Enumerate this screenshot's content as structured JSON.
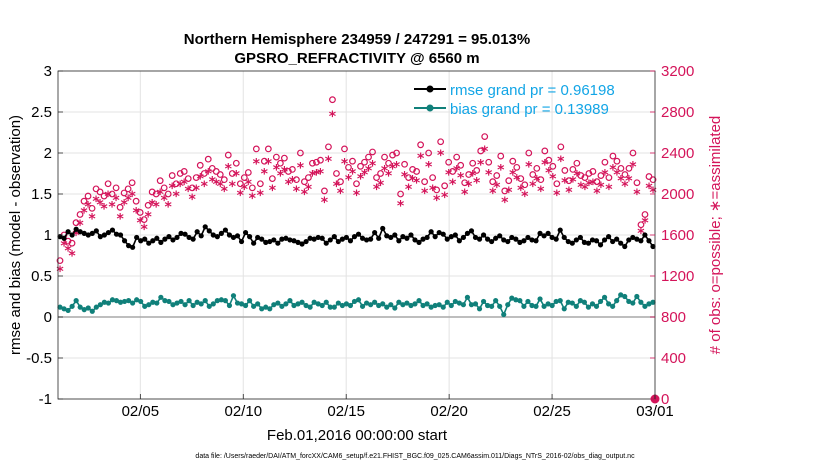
{
  "chart_data": {
    "type": "line",
    "title": "Northern Hemisphere 234959 / 247291 = 95.013%",
    "subtitle": "GPSRO_REFRACTIVITY @ 6560 m",
    "xlabel": "Feb.01,2016 00:00:00 start",
    "ylabel": "rmse and bias (model - observation)",
    "y2label": "# of obs: o=possible; ∗=assimilated",
    "footnote": "data file: /Users/raeder/DAI/ATM_forcXX/CAM6_setup/f.e21.FHIST_BGC.f09_025.CAM6assim.011/Diags_NTrS_2016-02/obs_diag_output.nc",
    "xlim": [
      1,
      30
    ],
    "ylim": [
      -1,
      3
    ],
    "y2lim": [
      0,
      3200
    ],
    "x_tick_values": [
      5,
      10,
      15,
      20,
      25,
      30
    ],
    "x_tick_labels": [
      "02/05",
      "02/10",
      "02/15",
      "02/20",
      "02/25",
      "03/01"
    ],
    "y_ticks": [
      -1,
      -0.5,
      0,
      0.5,
      1,
      1.5,
      2,
      2.5,
      3
    ],
    "y_tick_labels": [
      "-1",
      "-0.5",
      "0",
      "0.5",
      "1",
      "1.5",
      "2",
      "2.5",
      "3"
    ],
    "y2_ticks": [
      0,
      400,
      800,
      1200,
      1600,
      2000,
      2400,
      2800,
      3200
    ],
    "y2_tick_labels": [
      "0",
      "400",
      "800",
      "1200",
      "1600",
      "2000",
      "2400",
      "2800",
      "3200"
    ],
    "grid": true,
    "legend_position": "top-right",
    "series": [
      {
        "name": "rmse grand pr = 0.96198",
        "color": "#000000",
        "axis": "left",
        "values": [
          0.98,
          0.96,
          1.04,
          1.0,
          1.07,
          1.04,
          1.02,
          1.0,
          1.02,
          1.05,
          0.98,
          1.0,
          1.03,
          1.06,
          1.01,
          1.0,
          0.93,
          0.87,
          0.85,
          0.97,
          0.93,
          0.95,
          0.9,
          0.93,
          0.96,
          0.91,
          0.95,
          0.98,
          0.94,
          0.97,
          1.02,
          1.01,
          0.97,
          0.95,
          1.04,
          0.99,
          1.1,
          1.05,
          1.0,
          0.98,
          1.02,
          1.06,
          1.0,
          0.97,
          0.99,
          0.92,
          1.03,
          0.98,
          0.9,
          0.97,
          0.95,
          0.91,
          0.92,
          0.94,
          0.9,
          0.95,
          0.96,
          0.94,
          0.93,
          0.91,
          0.89,
          0.92,
          0.96,
          0.95,
          0.97,
          0.96,
          0.9,
          0.94,
          0.98,
          0.92,
          0.95,
          0.97,
          0.93,
          0.98,
          1.01,
          0.96,
          0.94,
          0.95,
          1.03,
          0.96,
          1.08,
          0.99,
          0.97,
          1.0,
          0.93,
          0.98,
          0.96,
          1.0,
          0.94,
          0.91,
          0.95,
          0.97,
          1.04,
          0.98,
          1.03,
          1.01,
          0.95,
          0.98,
          1.0,
          0.93,
          0.97,
          1.02,
          1.05,
          0.97,
          0.95,
          1.0,
          0.95,
          0.92,
          0.96,
          0.99,
          0.94,
          0.92,
          0.97,
          0.95,
          0.91,
          0.93,
          0.97,
          0.94,
          0.93,
          1.02,
          0.99,
          1.02,
          0.97,
          0.95,
          1.06,
          0.97,
          0.92,
          0.9,
          0.94,
          0.97,
          0.91,
          0.9,
          0.94,
          0.93,
          0.88,
          0.94,
          0.98,
          0.92,
          0.95,
          0.9,
          0.86,
          0.94,
          0.97,
          0.95,
          0.93,
          1.0,
          0.93,
          0.86
        ]
      },
      {
        "name": "bias grand pr = 0.13989",
        "color": "#10807a",
        "axis": "left",
        "values": [
          0.12,
          0.1,
          0.08,
          0.13,
          0.2,
          0.12,
          0.09,
          0.11,
          0.07,
          0.12,
          0.15,
          0.18,
          0.17,
          0.21,
          0.2,
          0.18,
          0.19,
          0.2,
          0.17,
          0.21,
          0.19,
          0.13,
          0.15,
          0.18,
          0.17,
          0.24,
          0.2,
          0.19,
          0.15,
          0.17,
          0.19,
          0.15,
          0.2,
          0.14,
          0.18,
          0.16,
          0.2,
          0.13,
          0.16,
          0.2,
          0.21,
          0.2,
          0.14,
          0.26,
          0.17,
          0.16,
          0.14,
          0.2,
          0.13,
          0.16,
          0.1,
          0.12,
          0.1,
          0.15,
          0.17,
          0.13,
          0.16,
          0.2,
          0.14,
          0.16,
          0.18,
          0.14,
          0.12,
          0.18,
          0.16,
          0.14,
          0.18,
          0.12,
          0.12,
          0.17,
          0.14,
          0.16,
          0.14,
          0.19,
          0.21,
          0.13,
          0.17,
          0.15,
          0.18,
          0.14,
          0.16,
          0.12,
          0.15,
          0.11,
          0.18,
          0.15,
          0.17,
          0.14,
          0.16,
          0.2,
          0.14,
          0.16,
          0.12,
          0.14,
          0.15,
          0.12,
          0.18,
          0.14,
          0.19,
          0.17,
          0.15,
          0.24,
          0.15,
          0.16,
          0.1,
          0.19,
          0.14,
          0.13,
          0.2,
          0.13,
          0.03,
          0.15,
          0.23,
          0.21,
          0.2,
          0.13,
          0.19,
          0.14,
          0.13,
          0.22,
          0.13,
          0.16,
          0.14,
          0.19,
          0.2,
          0.1,
          0.18,
          0.17,
          0.13,
          0.2,
          0.18,
          0.12,
          0.16,
          0.13,
          0.19,
          0.24,
          0.16,
          0.13,
          0.2,
          0.27,
          0.25,
          0.19,
          0.17,
          0.25,
          0.18,
          0.13,
          0.16,
          0.18
        ]
      },
      {
        "name": "possible",
        "color": "#d4145a",
        "axis": "right",
        "marker": "o",
        "values": [
          1350,
          1600,
          1540,
          1520,
          1720,
          1800,
          1930,
          1980,
          1860,
          2050,
          2020,
          1980,
          2100,
          2000,
          2060,
          1870,
          2010,
          2050,
          2110,
          1930,
          1820,
          1750,
          1890,
          2020,
          2000,
          2130,
          2060,
          2000,
          2180,
          2100,
          2200,
          2220,
          2150,
          2060,
          2160,
          2280,
          2200,
          2340,
          2250,
          2220,
          2190,
          2140,
          2380,
          2200,
          2300,
          2100,
          2160,
          2210,
          2060,
          2440,
          2100,
          2320,
          2440,
          2150,
          2360,
          2300,
          2350,
          2220,
          2240,
          2140,
          2400,
          2120,
          2160,
          2300,
          2310,
          2330,
          2030,
          2460,
          2920,
          2200,
          2120,
          2440,
          2260,
          2320,
          2100,
          2270,
          2310,
          2360,
          2410,
          2160,
          2200,
          2360,
          2300,
          2380,
          2400,
          2000,
          2290,
          2160,
          2240,
          2220,
          2480,
          2120,
          2400,
          2160,
          2040,
          2510,
          2080,
          2310,
          2220,
          2360,
          2280,
          2110,
          2190,
          2300,
          2230,
          2420,
          2560,
          2310,
          2120,
          2180,
          2370,
          2030,
          2130,
          2320,
          2260,
          2150,
          2090,
          2400,
          2190,
          2250,
          2140,
          2420,
          2330,
          2270,
          2100,
          2460,
          2230,
          2130,
          2240,
          2300,
          2180,
          2160,
          2200,
          2220,
          2120,
          2180,
          2310,
          2160,
          2370,
          2320,
          2250,
          2190,
          2250,
          2400,
          2110,
          1700,
          1800,
          2170,
          2140
        ]
      },
      {
        "name": "assimilated",
        "color": "#d4145a",
        "axis": "right",
        "marker": "*",
        "values": [
          1250,
          1500,
          1450,
          1400,
          1600,
          1700,
          1820,
          1880,
          1760,
          1930,
          1900,
          1860,
          1980,
          1880,
          1940,
          1760,
          1900,
          1940,
          1980,
          1820,
          1720,
          1660,
          1780,
          1900,
          1880,
          2000,
          1940,
          1880,
          2060,
          1980,
          2080,
          2100,
          2030,
          1950,
          2040,
          2150,
          2080,
          2200,
          2120,
          2100,
          2080,
          2030,
          2250,
          2080,
          2180,
          1990,
          2050,
          2100,
          1960,
          2300,
          1990,
          2200,
          2300,
          2040,
          2240,
          2180,
          2220,
          2100,
          2120,
          2030,
          2260,
          2000,
          2050,
          2180,
          2190,
          2200,
          1920,
          2320,
          2760,
          2080,
          2010,
          2300,
          2140,
          2200,
          1990,
          2150,
          2190,
          2230,
          2280,
          2050,
          2090,
          2230,
          2180,
          2250,
          2270,
          1890,
          2170,
          2050,
          2130,
          2110,
          2350,
          2010,
          2270,
          2040,
          1940,
          2380,
          1970,
          2190,
          2100,
          2230,
          2160,
          2000,
          2080,
          2180,
          2110,
          2290,
          2420,
          2190,
          2010,
          2070,
          2240,
          1920,
          2020,
          2190,
          2140,
          2040,
          1980,
          2270,
          2080,
          2130,
          2030,
          2290,
          2210,
          2150,
          1990,
          2320,
          2110,
          2020,
          2120,
          2180,
          2070,
          2050,
          2090,
          2100,
          2010,
          2070,
          2190,
          2050,
          2240,
          2190,
          2130,
          2080,
          2130,
          2270,
          2000,
          1620,
          1720,
          2060,
          2020
        ]
      }
    ],
    "final_point": {
      "x": 30,
      "y2": 0,
      "color": "#d4145a"
    }
  }
}
